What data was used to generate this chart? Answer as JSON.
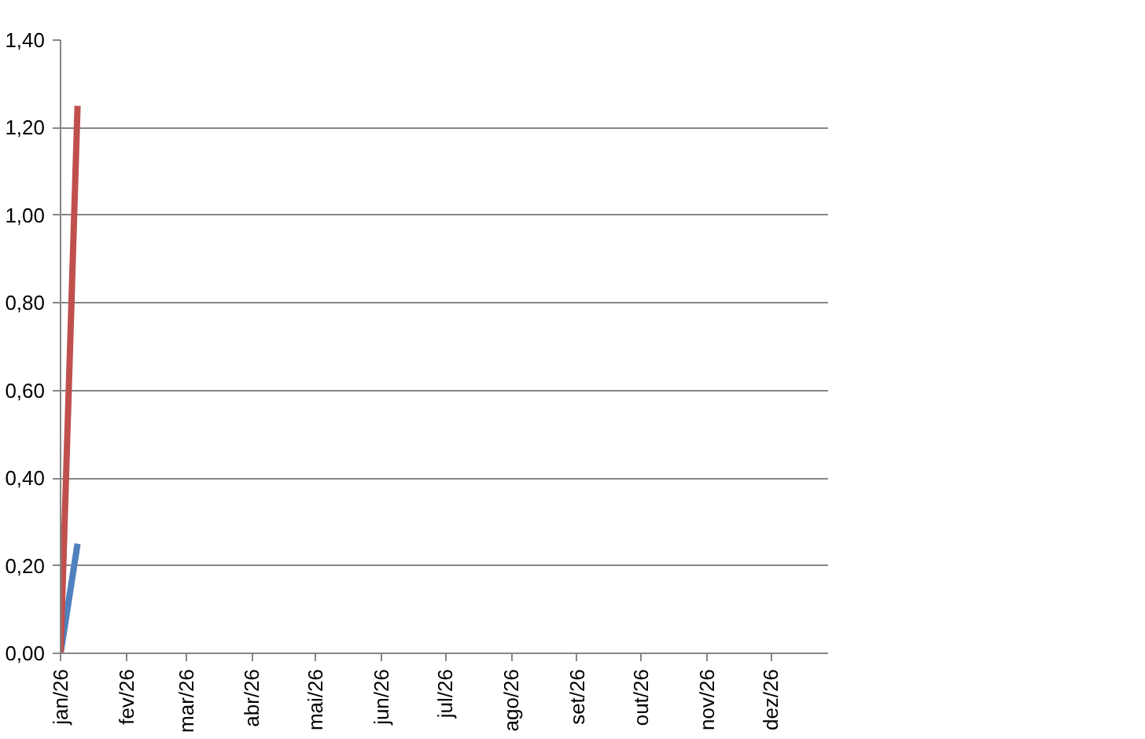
{
  "chart_data": {
    "type": "line",
    "x": [
      "2026-01-01",
      "2026-01-09"
    ],
    "series": [
      {
        "color": "#4f81bd",
        "values": [
          0,
          0.25
        ]
      },
      {
        "color": "#c0504d",
        "values": [
          0,
          1.25
        ]
      }
    ],
    "xlim": [
      "2026-01-01",
      "2026-12-28"
    ],
    "xticks": [
      {
        "value": "2026-01-01",
        "label": "jan/26"
      },
      {
        "value": "2026-02-01",
        "label": "fev/26"
      },
      {
        "value": "2026-03-01",
        "label": "mar/26"
      },
      {
        "value": "2026-04-01",
        "label": "abr/26"
      },
      {
        "value": "2026-05-01",
        "label": "mai/26"
      },
      {
        "value": "2026-06-01",
        "label": "jun/26"
      },
      {
        "value": "2026-07-01",
        "label": "jul/26"
      },
      {
        "value": "2026-08-01",
        "label": "ago/26"
      },
      {
        "value": "2026-09-01",
        "label": "set/26"
      },
      {
        "value": "2026-10-01",
        "label": "out/26"
      },
      {
        "value": "2026-11-01",
        "label": "nov/26"
      },
      {
        "value": "2026-12-01",
        "label": "dez/26"
      }
    ],
    "ylim": [
      0,
      1.4
    ],
    "yticks": [
      {
        "value": 0,
        "label": "0,00"
      },
      {
        "value": 0.2,
        "label": "0,20"
      },
      {
        "value": 0.4,
        "label": "0,40"
      },
      {
        "value": 0.6,
        "label": "0,60"
      },
      {
        "value": 0.8,
        "label": "0,80"
      },
      {
        "value": 1.0,
        "label": "1,00"
      },
      {
        "value": 1.2,
        "label": "1,20"
      },
      {
        "value": 1.4,
        "label": "1,40"
      }
    ],
    "grid": "y",
    "line_style": "solid"
  }
}
